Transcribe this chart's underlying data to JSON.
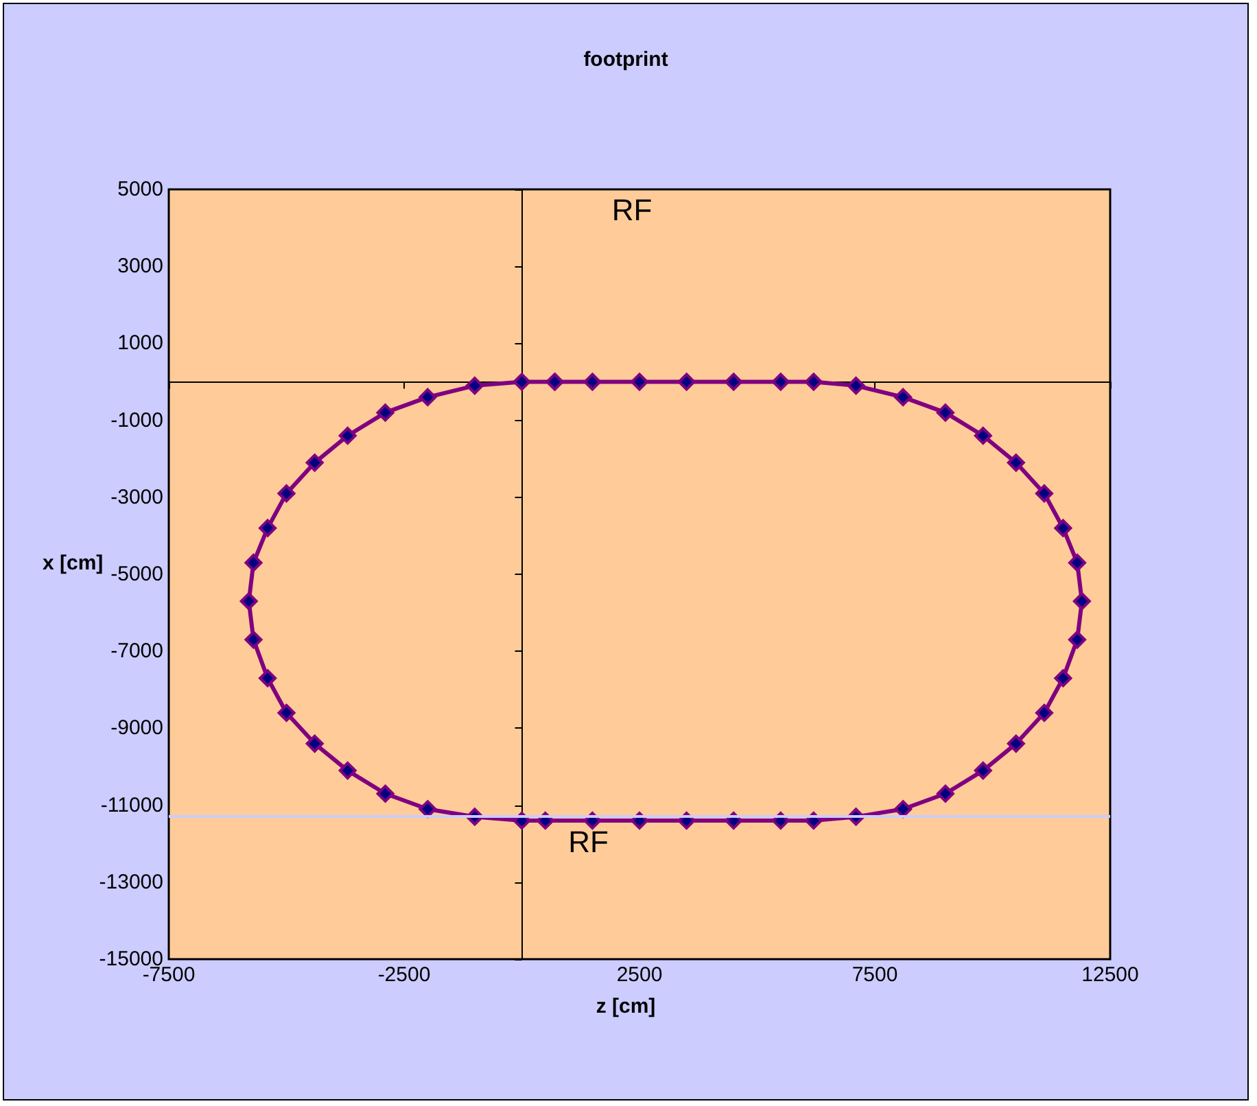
{
  "chart_data": {
    "type": "scatter",
    "title": "footprint",
    "xlabel": "z [cm]",
    "ylabel": "x [cm]",
    "xlim": [
      -7500,
      12500
    ],
    "xticks": [
      -7500,
      -2500,
      2500,
      7500,
      12500
    ],
    "ylim": [
      -15000,
      5000
    ],
    "yticks": [
      -15000,
      -13000,
      -11000,
      -9000,
      -7000,
      -5000,
      -3000,
      -1000,
      1000,
      3000,
      5000
    ],
    "grid": false,
    "marker": "diamond",
    "line_style": "solid",
    "annotations": [
      "RF",
      "RF"
    ],
    "ref_lines": [
      {
        "axis": "y",
        "value": -11300,
        "color": "#ccccff"
      }
    ],
    "series": [
      {
        "color": "#800080",
        "x": [
          700,
          1500,
          2500,
          3500,
          4500,
          5500,
          6200,
          7100,
          8100,
          9000,
          9800,
          10500,
          11100,
          11500,
          11800,
          11900,
          11800,
          11500,
          11100,
          10500,
          9800,
          9000,
          8100,
          7100,
          6200,
          5500,
          4500,
          3500,
          2500,
          1500,
          500,
          0,
          -1000,
          -2000,
          -2900,
          -3700,
          -4400,
          -5000,
          -5400,
          -5700,
          -5800,
          -5700,
          -5400,
          -5000,
          -4400,
          -3700,
          -2900,
          -2000,
          -1000,
          0,
          700
        ],
        "values": [
          0,
          0,
          0,
          0,
          0,
          0,
          0,
          -100,
          -400,
          -800,
          -1400,
          -2100,
          -2900,
          -3800,
          -4700,
          -5700,
          -6700,
          -7700,
          -8600,
          -9400,
          -10100,
          -10700,
          -11100,
          -11300,
          -11400,
          -11400,
          -11400,
          -11400,
          -11400,
          -11400,
          -11400,
          -11400,
          -11300,
          -11100,
          -10700,
          -10100,
          -9400,
          -8600,
          -7700,
          -6700,
          -5700,
          -4700,
          -3800,
          -2900,
          -2100,
          -1400,
          -800,
          -400,
          -100,
          0,
          0
        ]
      }
    ]
  }
}
